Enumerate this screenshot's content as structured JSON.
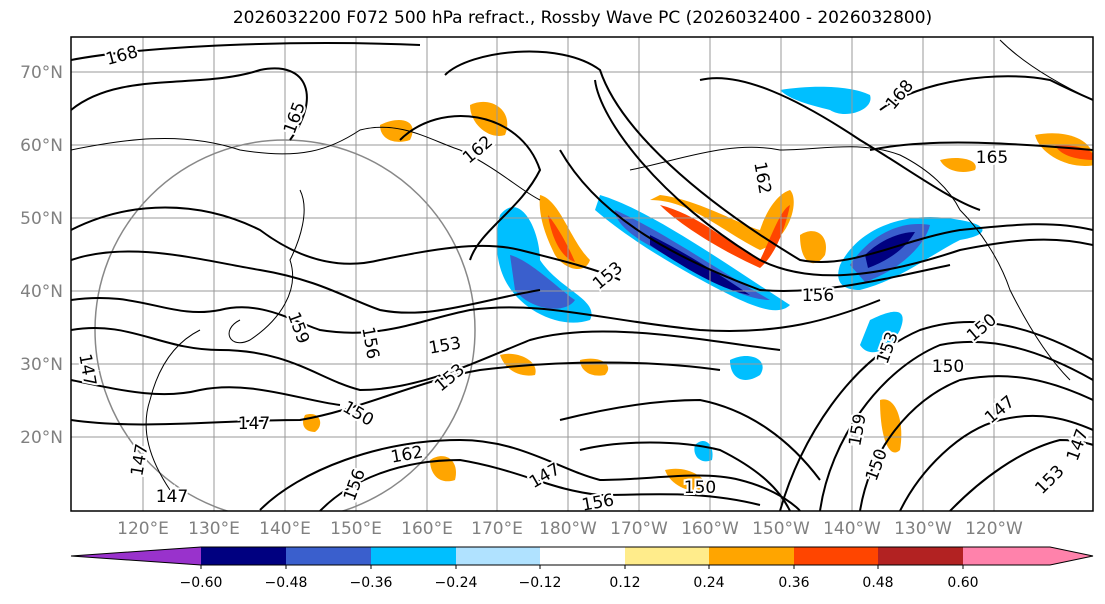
{
  "title": "2026032200 F072 500 hPa refract., Rossby Wave PC (2026032400 - 2026032800)",
  "lat_labels": [
    "70°N",
    "60°N",
    "50°N",
    "40°N",
    "30°N",
    "20°N"
  ],
  "lon_labels": [
    "120°E",
    "130°E",
    "140°E",
    "150°E",
    "160°E",
    "170°E",
    "180°W",
    "170°W",
    "160°W",
    "150°W",
    "140°W",
    "130°W",
    "120°W"
  ],
  "colorbar": {
    "ticks": [
      "−0.60",
      "−0.48",
      "−0.36",
      "−0.24",
      "−0.12",
      "0.12",
      "0.24",
      "0.36",
      "0.48",
      "0.60"
    ],
    "colors": [
      "#9932cc",
      "#000080",
      "#3a5fcd",
      "#00bfff",
      "#b0e2ff",
      "#ffffff",
      "#ffec8b",
      "#ffa500",
      "#ff4500",
      "#b22222",
      "#ff82ab"
    ]
  },
  "contour_labels": [
    "168",
    "165",
    "162",
    "168",
    "165",
    "162",
    "156",
    "153",
    "159",
    "156",
    "153",
    "150",
    "147",
    "153",
    "150",
    "147",
    "147",
    "156",
    "162",
    "147",
    "156",
    "150",
    "147",
    "150",
    "153",
    "159",
    "150",
    "147",
    "153",
    "147"
  ]
}
